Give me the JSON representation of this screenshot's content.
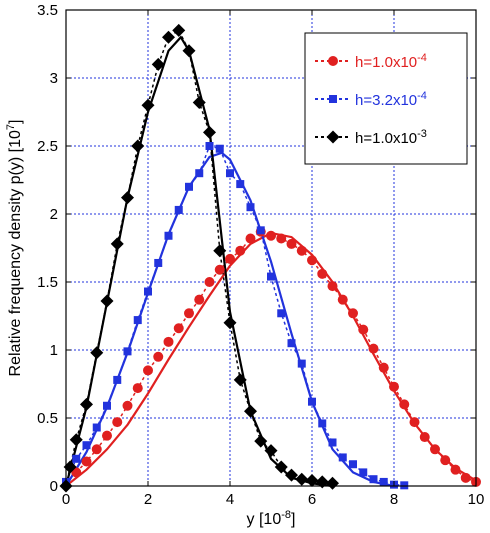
{
  "chart_data": {
    "type": "line",
    "xlabel": "y [10",
    "xlabel_exp": "-8",
    "xlabel_end": "]",
    "ylabel": "Relative frequency density p(y) [10",
    "ylabel_exp": "7",
    "ylabel_end": "]",
    "xlim": [
      0,
      10
    ],
    "ylim": [
      0,
      3.5
    ],
    "xticks": [
      "0",
      "2",
      "4",
      "6",
      "8",
      "10"
    ],
    "yticks": [
      "0",
      "0.5",
      "1",
      "1.5",
      "2",
      "2.5",
      "3",
      "3.5"
    ],
    "grid": true,
    "legend_position": "top-right",
    "series": [
      {
        "name": "h=1.0x10",
        "name_exp": "-4",
        "color": "#e02020",
        "marker": "circle",
        "points": [
          [
            0.25,
            0.1
          ],
          [
            0.5,
            0.18
          ],
          [
            0.75,
            0.27
          ],
          [
            1.0,
            0.37
          ],
          [
            1.25,
            0.47
          ],
          [
            1.5,
            0.59
          ],
          [
            1.75,
            0.72
          ],
          [
            2.0,
            0.85
          ],
          [
            2.25,
            0.95
          ],
          [
            2.5,
            1.06
          ],
          [
            2.75,
            1.16
          ],
          [
            3.0,
            1.27
          ],
          [
            3.25,
            1.37
          ],
          [
            3.5,
            1.5
          ],
          [
            3.75,
            1.59
          ],
          [
            4.0,
            1.67
          ],
          [
            4.25,
            1.73
          ],
          [
            4.5,
            1.82
          ],
          [
            4.75,
            1.87
          ],
          [
            5.0,
            1.84
          ],
          [
            5.25,
            1.82
          ],
          [
            5.5,
            1.78
          ],
          [
            5.75,
            1.73
          ],
          [
            6.0,
            1.66
          ],
          [
            6.25,
            1.56
          ],
          [
            6.5,
            1.47
          ],
          [
            6.75,
            1.37
          ],
          [
            7.0,
            1.27
          ],
          [
            7.25,
            1.15
          ],
          [
            7.5,
            1.01
          ],
          [
            7.75,
            0.87
          ],
          [
            8.0,
            0.73
          ],
          [
            8.25,
            0.6
          ],
          [
            8.5,
            0.47
          ],
          [
            8.75,
            0.36
          ],
          [
            9.0,
            0.27
          ],
          [
            9.25,
            0.19
          ],
          [
            9.5,
            0.12
          ],
          [
            9.75,
            0.06
          ],
          [
            10.0,
            0.03
          ]
        ],
        "fit": [
          [
            0.0,
            0.0
          ],
          [
            0.5,
            0.12
          ],
          [
            1.0,
            0.27
          ],
          [
            1.5,
            0.45
          ],
          [
            2.0,
            0.68
          ],
          [
            2.5,
            0.93
          ],
          [
            3.0,
            1.17
          ],
          [
            3.5,
            1.4
          ],
          [
            4.0,
            1.62
          ],
          [
            4.5,
            1.78
          ],
          [
            5.0,
            1.86
          ],
          [
            5.5,
            1.83
          ],
          [
            6.0,
            1.7
          ],
          [
            6.5,
            1.5
          ],
          [
            7.0,
            1.25
          ],
          [
            7.5,
            0.97
          ],
          [
            8.0,
            0.7
          ],
          [
            8.5,
            0.46
          ],
          [
            9.0,
            0.27
          ],
          [
            9.5,
            0.13
          ],
          [
            10.0,
            0.04
          ]
        ]
      },
      {
        "name": "h=3.2x10",
        "name_exp": "-4",
        "color": "#2233dd",
        "marker": "square",
        "points": [
          [
            0.0,
            0.03
          ],
          [
            0.25,
            0.2
          ],
          [
            0.5,
            0.3
          ],
          [
            0.75,
            0.43
          ],
          [
            1.0,
            0.59
          ],
          [
            1.25,
            0.78
          ],
          [
            1.5,
            0.99
          ],
          [
            1.75,
            1.22
          ],
          [
            2.0,
            1.43
          ],
          [
            2.25,
            1.64
          ],
          [
            2.5,
            1.84
          ],
          [
            2.75,
            2.03
          ],
          [
            3.0,
            2.2
          ],
          [
            3.25,
            2.3
          ],
          [
            3.5,
            2.5
          ],
          [
            3.75,
            2.48
          ],
          [
            4.0,
            2.3
          ],
          [
            4.25,
            2.22
          ],
          [
            4.5,
            2.05
          ],
          [
            4.75,
            1.88
          ],
          [
            5.0,
            1.54
          ],
          [
            5.25,
            1.27
          ],
          [
            5.5,
            1.05
          ],
          [
            5.75,
            0.9
          ],
          [
            6.0,
            0.62
          ],
          [
            6.25,
            0.46
          ],
          [
            6.5,
            0.32
          ],
          [
            6.75,
            0.21
          ],
          [
            7.0,
            0.16
          ],
          [
            7.25,
            0.1
          ],
          [
            7.5,
            0.05
          ],
          [
            7.75,
            0.03
          ],
          [
            8.0,
            0.01
          ],
          [
            8.25,
            0.005
          ]
        ],
        "fit": [
          [
            0.0,
            0.0
          ],
          [
            0.5,
            0.25
          ],
          [
            1.0,
            0.58
          ],
          [
            1.5,
            0.98
          ],
          [
            2.0,
            1.42
          ],
          [
            2.5,
            1.85
          ],
          [
            3.0,
            2.2
          ],
          [
            3.5,
            2.42
          ],
          [
            3.8,
            2.45
          ],
          [
            4.0,
            2.4
          ],
          [
            4.5,
            2.1
          ],
          [
            5.0,
            1.65
          ],
          [
            5.5,
            1.12
          ],
          [
            6.0,
            0.62
          ],
          [
            6.5,
            0.27
          ],
          [
            7.0,
            0.1
          ],
          [
            7.5,
            0.03
          ],
          [
            8.0,
            0.0
          ]
        ]
      },
      {
        "name": "h=1.0x10",
        "name_exp": "-3",
        "color": "#000000",
        "marker": "diamond",
        "points": [
          [
            0.0,
            0.0
          ],
          [
            0.1,
            0.14
          ],
          [
            0.25,
            0.34
          ],
          [
            0.5,
            0.6
          ],
          [
            0.75,
            0.98
          ],
          [
            1.0,
            1.36
          ],
          [
            1.25,
            1.78
          ],
          [
            1.5,
            2.12
          ],
          [
            1.75,
            2.5
          ],
          [
            2.0,
            2.8
          ],
          [
            2.25,
            3.1
          ],
          [
            2.5,
            3.3
          ],
          [
            2.75,
            3.35
          ],
          [
            3.0,
            3.2
          ],
          [
            3.25,
            2.82
          ],
          [
            3.5,
            2.6
          ],
          [
            3.75,
            1.73
          ],
          [
            4.0,
            1.2
          ],
          [
            4.25,
            0.78
          ],
          [
            4.5,
            0.55
          ],
          [
            4.75,
            0.33
          ],
          [
            5.0,
            0.26
          ],
          [
            5.25,
            0.14
          ],
          [
            5.5,
            0.08
          ],
          [
            5.75,
            0.05
          ],
          [
            6.0,
            0.04
          ],
          [
            6.25,
            0.03
          ],
          [
            6.5,
            0.02
          ]
        ],
        "fit": [
          [
            0.0,
            0.0
          ],
          [
            0.5,
            0.58
          ],
          [
            1.0,
            1.35
          ],
          [
            1.5,
            2.12
          ],
          [
            2.0,
            2.75
          ],
          [
            2.5,
            3.2
          ],
          [
            2.8,
            3.3
          ],
          [
            3.0,
            3.2
          ],
          [
            3.5,
            2.62
          ],
          [
            4.0,
            1.28
          ],
          [
            4.5,
            0.55
          ],
          [
            5.0,
            0.2
          ],
          [
            5.5,
            0.06
          ],
          [
            6.0,
            0.02
          ],
          [
            6.5,
            0.0
          ]
        ]
      }
    ]
  }
}
